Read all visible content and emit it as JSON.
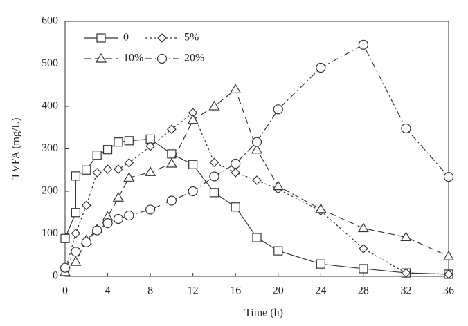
{
  "chart_data": {
    "type": "line",
    "x_label": "Time (h)",
    "y_label": "TVFA (mg/L)",
    "xlim": [
      0,
      36
    ],
    "xticks": [
      0,
      4,
      8,
      12,
      16,
      20,
      24,
      28,
      32,
      36
    ],
    "ylim": [
      0,
      600
    ],
    "yticks": [
      0,
      100,
      200,
      300,
      400,
      500,
      600
    ],
    "grid": false,
    "legend": "upper left",
    "series": [
      {
        "name": "0",
        "color": "#333333",
        "marker": "square",
        "line_style": "solid",
        "x": [
          0,
          1,
          1,
          2,
          3,
          4,
          5,
          6,
          8,
          10,
          12,
          14,
          16,
          18,
          20,
          24,
          28,
          32,
          36
        ],
        "values": [
          89,
          150,
          236,
          250,
          285,
          298,
          316,
          319,
          323,
          288,
          263,
          197,
          163,
          91,
          60,
          29,
          18,
          8,
          5
        ]
      },
      {
        "name": "5%",
        "color": "#333333",
        "marker": "diamond",
        "line_style": "dotted",
        "x": [
          0,
          1,
          2,
          3,
          4,
          5,
          6,
          8,
          10,
          12,
          14,
          16,
          18,
          20,
          24,
          28,
          32,
          36
        ],
        "values": [
          13,
          101,
          167,
          244,
          252,
          252,
          267,
          306,
          346,
          385,
          268,
          244,
          226,
          205,
          154,
          65,
          8,
          5
        ]
      },
      {
        "name": "10%",
        "color": "#333333",
        "marker": "triangle",
        "line_style": "dashed",
        "x": [
          0,
          1,
          2,
          3,
          4,
          5,
          6,
          8,
          10,
          12,
          14,
          16,
          18,
          20,
          24,
          28,
          32,
          36
        ],
        "values": [
          10,
          34,
          85,
          110,
          140,
          185,
          232,
          245,
          265,
          368,
          400,
          440,
          298,
          212,
          158,
          113,
          92,
          47
        ]
      },
      {
        "name": "20%",
        "color": "#333333",
        "marker": "circle",
        "line_style": "dashdot",
        "x": [
          0,
          1,
          2,
          3,
          4,
          5,
          6,
          8,
          10,
          12,
          14,
          16,
          18,
          20,
          24,
          28,
          32,
          36
        ],
        "values": [
          20,
          58,
          80,
          108,
          125,
          135,
          143,
          157,
          178,
          200,
          235,
          265,
          316,
          393,
          491,
          545,
          348,
          234
        ]
      }
    ]
  }
}
